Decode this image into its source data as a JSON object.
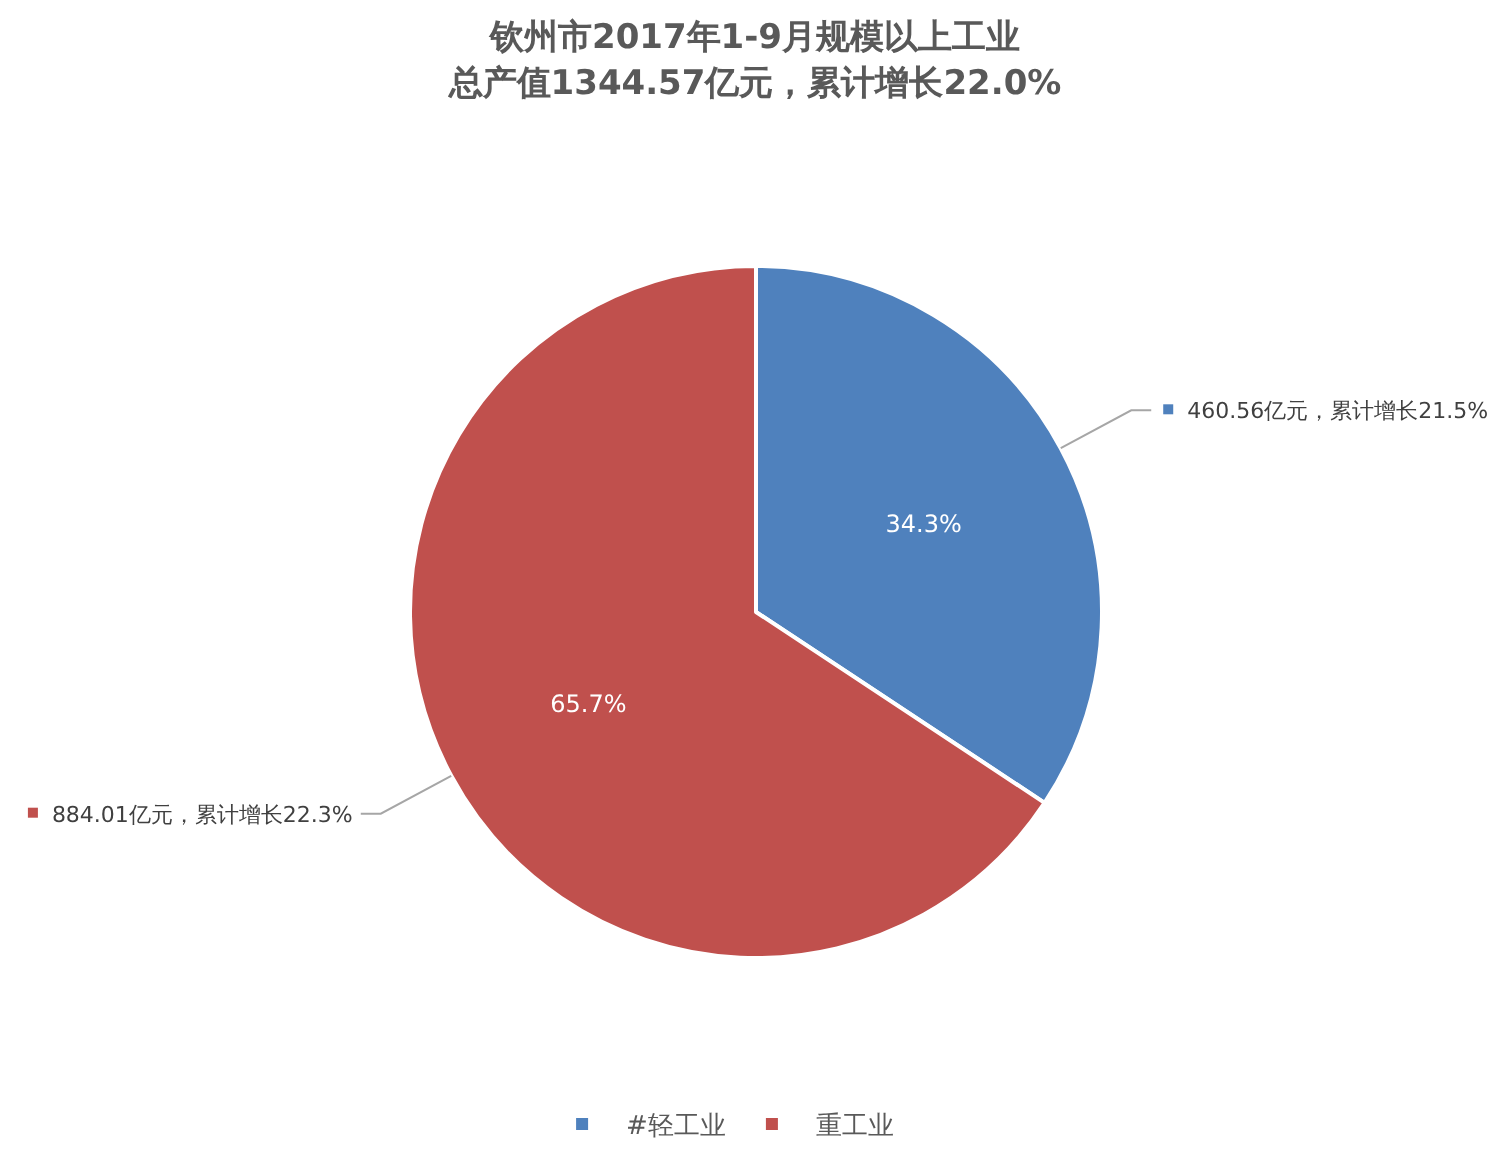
{
  "chart_data": {
    "type": "pie",
    "title": "钦州市2017年1-9月规模以上工业",
    "subtitle": "总产值1344.57亿元，累计增长22.0%",
    "categories": [
      "#轻工业",
      "重工业"
    ],
    "values": [
      34.3,
      65.7
    ],
    "colors": [
      "#4f81bd",
      "#c0504d"
    ],
    "value_labels": [
      "34.3%",
      "65.7%"
    ],
    "annotations": [
      "460.56亿元，累计增长21.5%",
      "884.01亿元，累计增长22.3%"
    ],
    "legend": "bottom"
  }
}
